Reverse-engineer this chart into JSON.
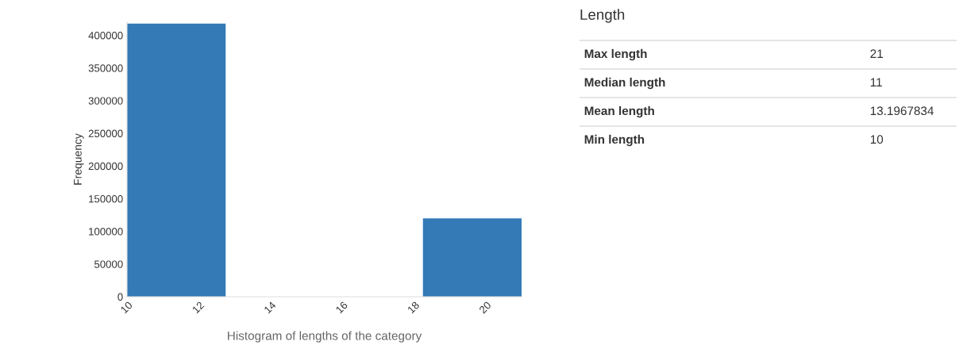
{
  "chart_data": [
    {
      "type": "histogram",
      "xlabel": "Histogram of lengths of the category",
      "ylabel": "Frequency",
      "bins": [
        10,
        12.75,
        15.5,
        18.25,
        21
      ],
      "values": [
        418000,
        0,
        0,
        120000
      ],
      "color": "#337ab7",
      "xlim": [
        10,
        21
      ],
      "xticks": [
        10,
        12,
        14,
        16,
        18,
        20
      ],
      "ylim": [
        0,
        420000
      ],
      "yticks": [
        0,
        50000,
        100000,
        150000,
        200000,
        250000,
        300000,
        350000,
        400000
      ],
      "grid": false
    },
    {
      "type": "other",
      "title": "Length",
      "categories": [
        "Max length",
        "Median length",
        "Mean length",
        "Min length"
      ],
      "values": [
        21,
        11,
        13.1967834,
        10
      ],
      "data_labels": true
    }
  ]
}
